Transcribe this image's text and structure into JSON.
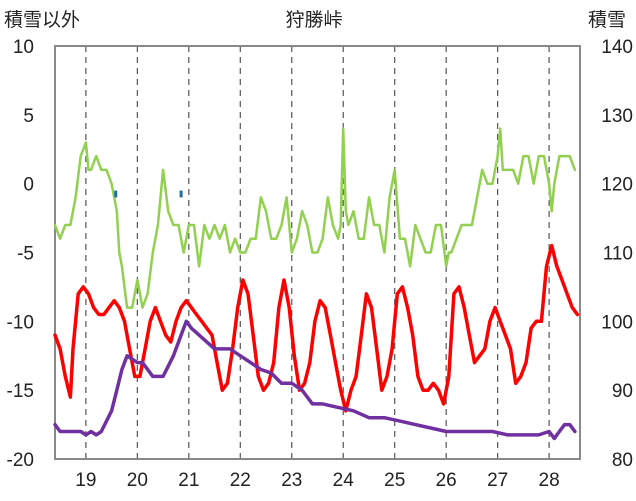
{
  "chart_data": {
    "type": "line",
    "title": "狩勝峠",
    "left_axis": {
      "label": "積雪以外",
      "ylim": [
        -20,
        10
      ],
      "ticks": [
        10,
        5,
        0,
        -5,
        -10,
        -15,
        -20
      ]
    },
    "right_axis": {
      "label": "積雪",
      "ylim": [
        80,
        140
      ],
      "ticks": [
        140,
        130,
        120,
        110,
        100,
        90,
        80
      ]
    },
    "x_axis": {
      "xlim": [
        18.4,
        28.6
      ],
      "tick_labels": [
        "19",
        "20",
        "21",
        "22",
        "23",
        "24",
        "25",
        "26",
        "27",
        "28"
      ],
      "tick_values": [
        19,
        20,
        21,
        22,
        23,
        24,
        25,
        26,
        27,
        28
      ]
    },
    "grid": "dashed vertical at each day",
    "colors": {
      "red": "#ff0000",
      "green": "#92d050",
      "purple": "#7030a0",
      "blue": "#1f6fa5"
    },
    "series": [
      {
        "color": "red",
        "axis": "left",
        "x": [
          18.4,
          18.5,
          18.6,
          18.7,
          18.75,
          18.85,
          18.95,
          19.05,
          19.15,
          19.25,
          19.35,
          19.45,
          19.55,
          19.65,
          19.75,
          19.85,
          19.95,
          20.05,
          20.15,
          20.25,
          20.35,
          20.45,
          20.55,
          20.65,
          20.75,
          20.85,
          20.95,
          21.05,
          21.15,
          21.25,
          21.35,
          21.45,
          21.55,
          21.65,
          21.75,
          21.85,
          21.95,
          22.05,
          22.15,
          22.25,
          22.35,
          22.45,
          22.55,
          22.65,
          22.75,
          22.85,
          22.95,
          23.05,
          23.15,
          23.25,
          23.35,
          23.45,
          23.55,
          23.65,
          23.75,
          23.85,
          23.95,
          24.05,
          24.15,
          24.25,
          24.35,
          24.45,
          24.55,
          24.65,
          24.75,
          24.85,
          24.95,
          25.05,
          25.15,
          25.25,
          25.35,
          25.45,
          25.55,
          25.65,
          25.75,
          25.85,
          25.95,
          26.05,
          26.15,
          26.25,
          26.35,
          26.45,
          26.55,
          26.65,
          26.75,
          26.85,
          26.95,
          27.05,
          27.15,
          27.25,
          27.35,
          27.45,
          27.55,
          27.65,
          27.75,
          27.85,
          27.95,
          28.05,
          28.15,
          28.25,
          28.35,
          28.45,
          28.55
        ],
        "y": [
          -11,
          -12,
          -14,
          -15.5,
          -12,
          -8,
          -7.5,
          -8,
          -9,
          -9.5,
          -9.5,
          -9,
          -8.5,
          -9,
          -10,
          -12,
          -14,
          -14,
          -12,
          -10,
          -9,
          -10,
          -11,
          -11.5,
          -10,
          -9,
          -8.5,
          -9,
          -9.5,
          -10,
          -10.5,
          -11,
          -13,
          -15,
          -14.5,
          -12,
          -9,
          -7,
          -8,
          -11,
          -14,
          -15,
          -14.5,
          -13,
          -9,
          -7,
          -9,
          -12.5,
          -15,
          -14.5,
          -13,
          -10,
          -8.5,
          -9,
          -11,
          -13,
          -15,
          -16.5,
          -15,
          -14,
          -11,
          -8,
          -9,
          -12,
          -15,
          -14,
          -12,
          -8,
          -7.5,
          -9,
          -11,
          -14,
          -15,
          -15,
          -14.5,
          -15,
          -16,
          -14,
          -8,
          -7.5,
          -9,
          -11,
          -13,
          -12.5,
          -12,
          -10,
          -9,
          -10,
          -11,
          -12,
          -14.5,
          -14,
          -13,
          -10.5,
          -10,
          -10,
          -6,
          -4.5,
          -6,
          -7,
          -8,
          -9,
          -9.5
        ]
      },
      {
        "color": "green",
        "axis": "left",
        "x": [
          18.4,
          18.5,
          18.6,
          18.7,
          18.8,
          18.9,
          19.0,
          19.05,
          19.1,
          19.2,
          19.3,
          19.4,
          19.5,
          19.6,
          19.65,
          19.7,
          19.8,
          19.9,
          20.0,
          20.1,
          20.2,
          20.3,
          20.4,
          20.5,
          20.6,
          20.7,
          20.8,
          20.9,
          21.0,
          21.1,
          21.2,
          21.3,
          21.4,
          21.5,
          21.6,
          21.7,
          21.8,
          21.9,
          22.0,
          22.1,
          22.2,
          22.3,
          22.4,
          22.5,
          22.6,
          22.7,
          22.8,
          22.9,
          23.0,
          23.1,
          23.2,
          23.3,
          23.4,
          23.5,
          23.6,
          23.7,
          23.8,
          23.9,
          23.95,
          24.0,
          24.05,
          24.1,
          24.2,
          24.3,
          24.4,
          24.5,
          24.6,
          24.7,
          24.8,
          24.9,
          25.0,
          25.1,
          25.2,
          25.3,
          25.4,
          25.5,
          25.6,
          25.7,
          25.8,
          25.9,
          26.0,
          26.05,
          26.1,
          26.2,
          26.3,
          26.4,
          26.5,
          26.6,
          26.7,
          26.8,
          26.9,
          27.0,
          27.05,
          27.1,
          27.2,
          27.3,
          27.4,
          27.5,
          27.6,
          27.7,
          27.8,
          27.9,
          28.0,
          28.05,
          28.1,
          28.2,
          28.3,
          28.4,
          28.5
        ],
        "y": [
          -3,
          -4,
          -3,
          -3,
          -1,
          2,
          3,
          1,
          1,
          2,
          1,
          1,
          0,
          -2,
          -5,
          -6,
          -9,
          -9,
          -7,
          -9,
          -8,
          -5,
          -3,
          1,
          -2,
          -3,
          -3,
          -5,
          -3,
          -3,
          -6,
          -3,
          -4,
          -3,
          -4,
          -3,
          -5,
          -4,
          -5,
          -5,
          -4,
          -4,
          -1,
          -2,
          -4,
          -4,
          -3,
          -1,
          -5,
          -4,
          -2,
          -3,
          -5,
          -5,
          -4,
          -1,
          -3,
          -4,
          -3,
          4,
          -2,
          -3,
          -2,
          -4,
          -4,
          -1,
          -3,
          -3,
          -5,
          -1,
          1,
          -4,
          -4,
          -6,
          -3,
          -4,
          -5,
          -5,
          -3,
          -3,
          -6,
          -5,
          -5,
          -4,
          -3,
          -3,
          -3,
          -1,
          1,
          0,
          0,
          2,
          4,
          1,
          1,
          1,
          0,
          2,
          2,
          0,
          2,
          2,
          0,
          -2,
          0,
          2,
          2,
          2,
          1
        ]
      },
      {
        "color": "purple",
        "axis": "right",
        "x": [
          18.4,
          18.5,
          18.7,
          18.9,
          19.0,
          19.1,
          19.2,
          19.3,
          19.5,
          19.6,
          19.7,
          19.8,
          20.0,
          20.1,
          20.3,
          20.5,
          20.7,
          20.85,
          20.95,
          21.05,
          21.2,
          21.5,
          21.8,
          22.0,
          22.2,
          22.4,
          22.6,
          22.8,
          23.0,
          23.2,
          23.4,
          23.6,
          23.9,
          24.2,
          24.5,
          24.8,
          25.1,
          25.4,
          25.7,
          26.0,
          26.3,
          26.6,
          26.9,
          27.2,
          27.5,
          27.8,
          28.0,
          28.1,
          28.2,
          28.3,
          28.4,
          28.5
        ],
        "y": [
          85,
          84,
          84,
          84,
          83.5,
          84,
          83.5,
          84,
          87,
          90,
          93,
          95,
          94,
          94,
          92,
          92,
          95,
          98,
          100,
          99,
          98,
          96,
          96,
          95,
          94,
          93,
          92.5,
          91,
          91,
          90,
          88,
          88,
          87.5,
          87,
          86,
          86,
          85.5,
          85,
          84.5,
          84,
          84,
          84,
          84,
          83.5,
          83.5,
          83.5,
          84,
          83,
          84,
          85,
          85,
          84
        ]
      },
      {
        "color": "blue",
        "axis": "left",
        "markers": [
          {
            "x": 19.58,
            "y": [
              -0.5,
              -1
            ]
          },
          {
            "x": 20.85,
            "y": [
              -0.5,
              -1
            ]
          }
        ]
      }
    ]
  }
}
